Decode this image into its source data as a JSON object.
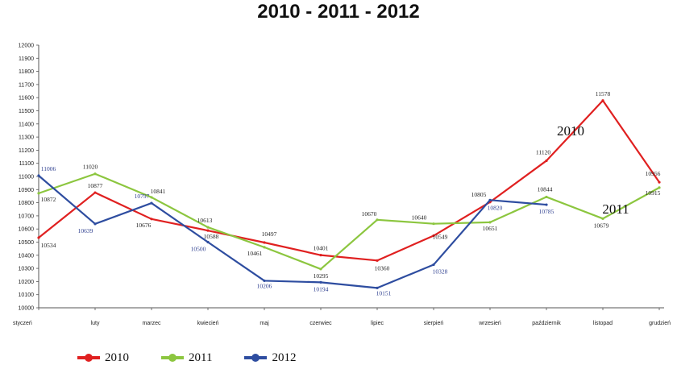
{
  "chart_data": {
    "type": "line",
    "title": "2010 - 2011 - 2012",
    "categories": [
      "styczeń",
      "luty",
      "marzec",
      "kwiecień",
      "maj",
      "czerwiec",
      "lipiec",
      "sierpień",
      "wrzesień",
      "październik",
      "listopad",
      "grudzień"
    ],
    "ylim": [
      10000,
      12000
    ],
    "ystep": 100,
    "grid": false,
    "legend": "bottom-left",
    "series": [
      {
        "name": "2010",
        "color": "#e02020",
        "values": [
          10534,
          10877,
          10676,
          10588,
          10497,
          10401,
          10360,
          10549,
          10805,
          11120,
          11578,
          10956
        ],
        "inline_label": "2010"
      },
      {
        "name": "2011",
        "color": "#8cc63f",
        "values": [
          10872,
          11020,
          10841,
          10613,
          10461,
          10295,
          10670,
          10640,
          10651,
          10844,
          10679,
          10915
        ],
        "inline_label": "2011"
      },
      {
        "name": "2012",
        "color": "#2e4da0",
        "values": [
          11006,
          10639,
          10797,
          10500,
          10206,
          10194,
          10151,
          10328,
          10820,
          10785,
          null,
          null
        ],
        "inline_label": ""
      }
    ]
  }
}
